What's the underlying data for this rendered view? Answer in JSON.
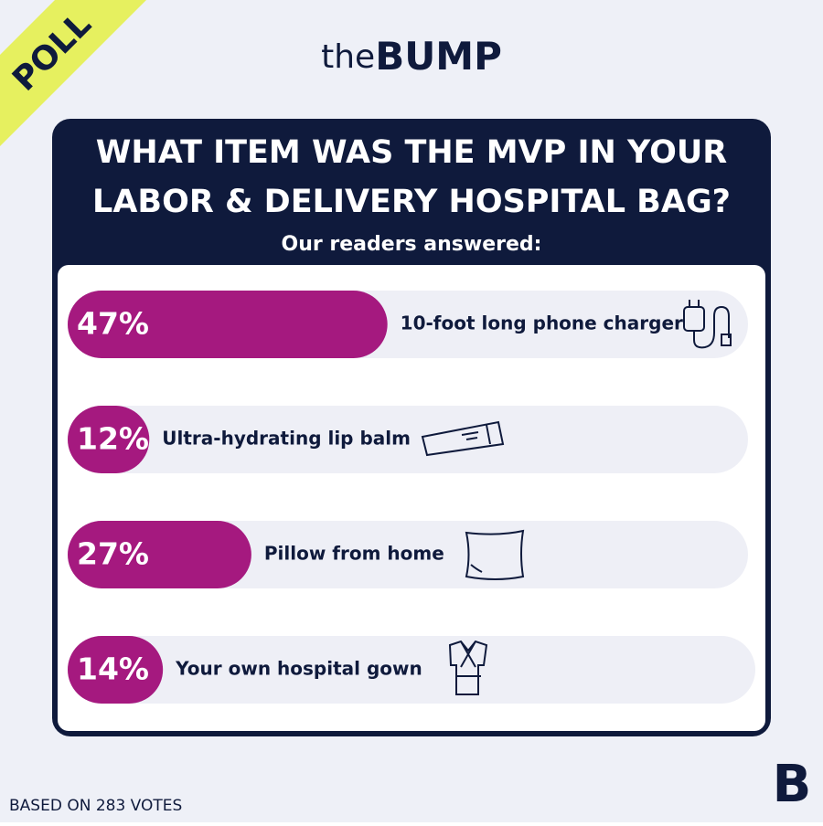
{
  "badge": "POLL",
  "logo": {
    "prefix": "the",
    "name": "BUMP",
    "mark": "B"
  },
  "footer": "BASED ON 283 VOTES",
  "chart_data": {
    "type": "bar",
    "orientation": "horizontal",
    "title": "WHAT ITEM WAS THE MVP IN YOUR LABOR & DELIVERY HOSPITAL BAG?",
    "subtitle": "Our readers answered:",
    "categories": [
      "10-foot long phone charger",
      "Ultra-hydrating lip balm",
      "Pillow from home",
      "Your own hospital gown"
    ],
    "values": [
      47,
      12,
      27,
      14
    ],
    "value_labels": [
      "47%",
      "12%",
      "27%",
      "14%"
    ],
    "color": "#a5197f",
    "xlim": [
      0,
      100
    ]
  }
}
